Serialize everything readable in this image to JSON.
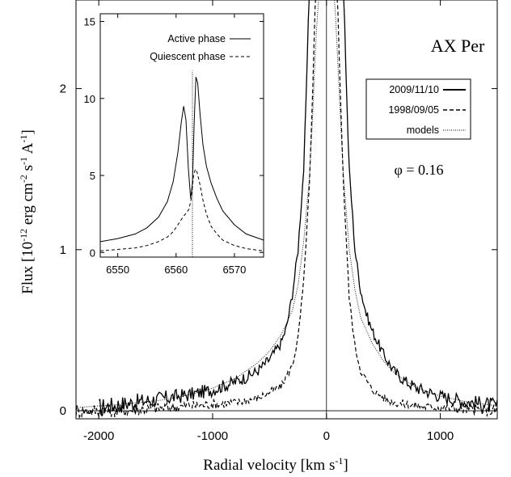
{
  "chart_data": {
    "main": {
      "type": "line",
      "title": "AX Per",
      "phase_label": "φ = 0.16",
      "xlabel": "Radial velocity [km s",
      "xlabel_sup": "-1",
      "xlabel_end": "]",
      "ylabel": {
        "prefix": "Flux [10",
        "exp": "-12",
        "mid1": " erg cm",
        "exp2": "-2",
        "mid2": " s",
        "exp3": "-1",
        "mid3": " A",
        "exp4": "-1",
        "end": "]"
      },
      "xlim": [
        -2200,
        1500
      ],
      "ylim": [
        -0.05,
        2.55
      ],
      "x_ticks": [
        -2000,
        -1000,
        0,
        1000
      ],
      "x_tick_labels": [
        "-2000",
        "-1000",
        "0",
        "1000"
      ],
      "y_ticks": [
        0,
        1,
        2
      ],
      "y_tick_labels": [
        "0",
        "1",
        "2"
      ],
      "legend": {
        "position": "upper-right",
        "entries": [
          {
            "label": "2009/11/10",
            "style": "solid"
          },
          {
            "label": "1998/09/05",
            "style": "dashed"
          },
          {
            "label": "models",
            "style": "dotted"
          }
        ]
      },
      "series": [
        {
          "name": "2009/11/10",
          "style": "solid",
          "noise": 0.025,
          "x": [
            -2000,
            -1800,
            -1600,
            -1400,
            -1200,
            -1000,
            -800,
            -700,
            -600,
            -500,
            -400,
            -350,
            -300,
            -250,
            -200,
            -180,
            -160,
            -150,
            150,
            160,
            180,
            200,
            250,
            300,
            350,
            400,
            500,
            600,
            700,
            800,
            1000,
            1200,
            1400,
            1500
          ],
          "y": [
            0.02,
            0.04,
            0.06,
            0.08,
            0.1,
            0.13,
            0.18,
            0.21,
            0.25,
            0.32,
            0.42,
            0.52,
            0.72,
            1.0,
            1.5,
            1.9,
            2.4,
            2.6,
            2.6,
            2.4,
            1.9,
            1.5,
            1.0,
            0.75,
            0.6,
            0.5,
            0.35,
            0.24,
            0.18,
            0.14,
            0.09,
            0.06,
            0.04,
            0.03
          ]
        },
        {
          "name": "1998/09/05",
          "style": "dashed",
          "noise": 0.018,
          "x": [
            -2200,
            -2000,
            -1800,
            -1600,
            -1400,
            -1200,
            -1000,
            -800,
            -600,
            -400,
            -300,
            -250,
            -200,
            -150,
            -120,
            -100,
            -90,
            90,
            100,
            120,
            150,
            200,
            250,
            300,
            400,
            500,
            600,
            800,
            1000,
            1200,
            1400,
            1500
          ],
          "y": [
            0.0,
            0.0,
            0.0,
            0.01,
            0.02,
            0.03,
            0.04,
            0.05,
            0.08,
            0.15,
            0.28,
            0.45,
            0.8,
            1.4,
            2.0,
            2.5,
            2.6,
            2.6,
            2.5,
            2.0,
            1.4,
            0.7,
            0.4,
            0.25,
            0.13,
            0.08,
            0.05,
            0.03,
            0.02,
            0.01,
            0.0,
            0.0
          ]
        },
        {
          "name": "models",
          "style": "dotted",
          "noise": 0,
          "x": [
            -2200,
            -1800,
            -1400,
            -1200,
            -1000,
            -800,
            -600,
            -500,
            -400,
            -300,
            -250,
            -200,
            -150,
            -120,
            -100,
            -80,
            -65,
            65,
            80,
            100,
            120,
            150,
            200,
            250,
            300,
            400,
            500,
            600,
            800,
            1000,
            1200,
            1400,
            1500
          ],
          "y": [
            0.02,
            0.04,
            0.07,
            0.1,
            0.14,
            0.2,
            0.3,
            0.37,
            0.47,
            0.62,
            0.78,
            1.05,
            1.45,
            1.85,
            2.2,
            2.45,
            2.6,
            2.6,
            2.45,
            2.15,
            1.85,
            1.45,
            1.0,
            0.75,
            0.58,
            0.42,
            0.31,
            0.23,
            0.14,
            0.09,
            0.06,
            0.04,
            0.03
          ]
        }
      ]
    },
    "inset": {
      "type": "line",
      "xlim": [
        6547,
        6575
      ],
      "ylim": [
        -0.3,
        15.5
      ],
      "x_ticks": [
        6550,
        6560,
        6570
      ],
      "x_tick_labels": [
        "6550",
        "6560",
        "6570"
      ],
      "y_ticks": [
        0,
        5,
        10,
        15
      ],
      "y_tick_labels": [
        "0",
        "5",
        "10",
        "15"
      ],
      "vline_x": 6562.8,
      "legend": {
        "position": "top-right",
        "entries": [
          {
            "label": "Active phase",
            "style": "solid"
          },
          {
            "label": "Quiescent phase",
            "style": "dashed"
          }
        ]
      },
      "series": [
        {
          "name": "Active phase",
          "style": "solid",
          "x": [
            6547,
            6550,
            6553,
            6555,
            6557,
            6558.5,
            6559.5,
            6560.3,
            6560.9,
            6561.3,
            6561.7,
            6562.1,
            6562.5,
            6562.8,
            6563.1,
            6563.4,
            6563.7,
            6564.1,
            6564.6,
            6565.2,
            6566,
            6567,
            6568,
            6570,
            6572,
            6575
          ],
          "y": [
            0.7,
            0.9,
            1.2,
            1.6,
            2.3,
            3.3,
            4.6,
            6.5,
            8.5,
            9.5,
            8.6,
            5.5,
            3.5,
            4.5,
            8.5,
            11.4,
            11.0,
            9.0,
            7.0,
            5.6,
            4.5,
            3.5,
            2.7,
            1.8,
            1.2,
            0.8
          ]
        },
        {
          "name": "Quiescent phase",
          "style": "dashed",
          "x": [
            6547,
            6550,
            6553,
            6555,
            6557,
            6558.5,
            6559.5,
            6560.3,
            6561,
            6561.6,
            6562.2,
            6562.6,
            6563,
            6563.3,
            6563.6,
            6564.1,
            6564.6,
            6565.2,
            6566,
            6567,
            6568,
            6570,
            6572,
            6575
          ],
          "y": [
            0.1,
            0.2,
            0.3,
            0.45,
            0.7,
            1.0,
            1.35,
            1.8,
            2.2,
            2.5,
            2.8,
            3.5,
            5.0,
            5.4,
            5.2,
            4.4,
            3.4,
            2.5,
            1.7,
            1.2,
            0.8,
            0.45,
            0.25,
            0.1
          ]
        }
      ]
    }
  }
}
